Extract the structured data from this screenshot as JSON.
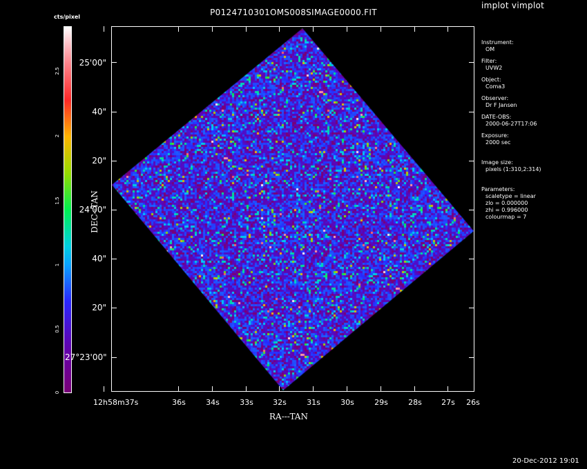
{
  "app_title": "implot vimplot",
  "plot_title": "P0124710301OMS008SIMAGE0000.FIT",
  "colorbar": {
    "label": "cts/pixel",
    "ticks": [
      "0",
      "0.5",
      "1",
      "1.5",
      "2",
      "2.5"
    ]
  },
  "axes": {
    "xlabel": "RA---TAN",
    "ylabel": "DEC--TAN",
    "x_ticks": [
      "12h58m37s",
      "36s",
      "34s",
      "33s",
      "32s",
      "31s",
      "30s",
      "29s",
      "28s",
      "27s",
      "26s"
    ],
    "y_ticks": [
      "25'00\"",
      "40\"",
      "20\"",
      "24'00\"",
      "40\"",
      "20\"",
      "27°23'00\""
    ]
  },
  "info": {
    "instrument_label": "Instrument:",
    "instrument": "OM",
    "filter_label": "Filter:",
    "filter": "UVW2",
    "object_label": "Object:",
    "object": "Coma3",
    "observer_label": "Observer:",
    "observer": "Dr F Jansen",
    "date_label": "DATE-OBS:",
    "date": "2000-06-27T17:06",
    "exposure_label": "Exposure:",
    "exposure": "2000 sec",
    "imgsize_label": "Image size:",
    "imgsize": "pixels (1:310,2:314)",
    "params_label": "Parameters:",
    "scaletype": "scaletype = linear",
    "zlo": "zlo = 0.000000",
    "zhi": "zhi = 0.996000",
    "colourmap": "colourmap = 7"
  },
  "footer_timestamp": "20-Dec-2012 19:01",
  "colors": {
    "background": "#000000",
    "foreground": "#ffffff"
  }
}
